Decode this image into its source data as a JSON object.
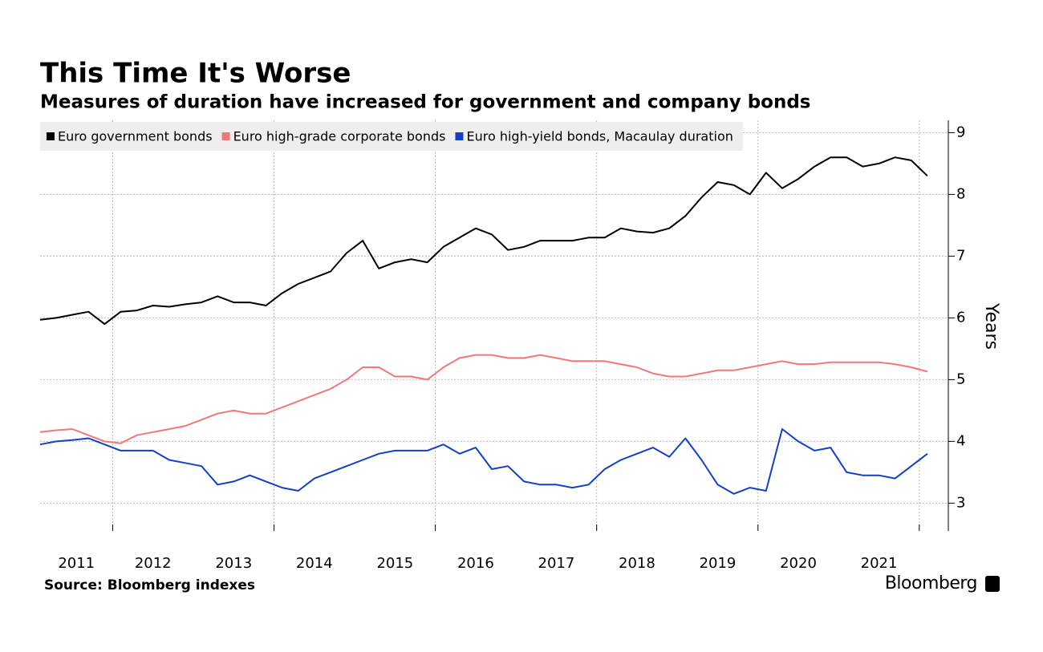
{
  "chart_data": {
    "type": "line",
    "title": "This Time It's Worse",
    "subtitle": "Measures of duration have increased for government and company bonds",
    "y_label": "Years",
    "source": "Source: Bloomberg indexes",
    "brand": "Bloomberg",
    "legend": "top-left",
    "grid": true,
    "xlim": [
      2011.1,
      2022.36
    ],
    "xticks": [
      {
        "value": 2011.55,
        "label": "2011"
      },
      {
        "value": 2012.5,
        "label": "2012"
      },
      {
        "value": 2013.5,
        "label": "2013"
      },
      {
        "value": 2014.5,
        "label": "2014"
      },
      {
        "value": 2015.5,
        "label": "2015"
      },
      {
        "value": 2016.5,
        "label": "2016"
      },
      {
        "value": 2017.5,
        "label": "2017"
      },
      {
        "value": 2018.5,
        "label": "2018"
      },
      {
        "value": 2019.5,
        "label": "2019"
      },
      {
        "value": 2020.5,
        "label": "2020"
      },
      {
        "value": 2021.5,
        "label": "2021"
      }
    ],
    "xgrid": [
      2012,
      2014,
      2016,
      2018,
      2020,
      2022
    ],
    "ylim": [
      2.55,
      9.2
    ],
    "yticks": [
      3,
      4,
      5,
      6,
      7,
      8,
      9
    ],
    "x": [
      2011.1,
      2011.3,
      2011.5,
      2011.7,
      2011.9,
      2012.1,
      2012.3,
      2012.5,
      2012.7,
      2012.9,
      2013.1,
      2013.3,
      2013.5,
      2013.7,
      2013.9,
      2014.1,
      2014.3,
      2014.5,
      2014.7,
      2014.9,
      2015.1,
      2015.3,
      2015.5,
      2015.7,
      2015.9,
      2016.1,
      2016.3,
      2016.5,
      2016.7,
      2016.9,
      2017.1,
      2017.3,
      2017.5,
      2017.7,
      2017.9,
      2018.1,
      2018.3,
      2018.5,
      2018.7,
      2018.9,
      2019.1,
      2019.3,
      2019.5,
      2019.7,
      2019.9,
      2020.1,
      2020.3,
      2020.5,
      2020.7,
      2020.9,
      2021.1,
      2021.3,
      2021.5,
      2021.7,
      2021.9,
      2022.1
    ],
    "series": [
      {
        "name": "Euro government bonds",
        "color": "#000000",
        "values": [
          5.97,
          6.0,
          6.05,
          6.1,
          5.9,
          6.1,
          6.12,
          6.2,
          6.18,
          6.22,
          6.25,
          6.35,
          6.25,
          6.25,
          6.2,
          6.4,
          6.55,
          6.65,
          6.75,
          7.05,
          7.25,
          6.8,
          6.9,
          6.95,
          6.9,
          7.15,
          7.3,
          7.45,
          7.35,
          7.1,
          7.15,
          7.25,
          7.25,
          7.25,
          7.3,
          7.3,
          7.45,
          7.4,
          7.38,
          7.45,
          7.65,
          7.95,
          8.2,
          8.15,
          8.0,
          8.35,
          8.1,
          8.25,
          8.45,
          8.6,
          8.6,
          8.45,
          8.5,
          8.6,
          8.55,
          8.3
        ]
      },
      {
        "name": "Euro high-grade corporate bonds",
        "color": "#f07878",
        "values": [
          4.15,
          4.18,
          4.2,
          4.1,
          4.0,
          3.97,
          4.1,
          4.15,
          4.2,
          4.25,
          4.35,
          4.45,
          4.5,
          4.45,
          4.45,
          4.55,
          4.65,
          4.75,
          4.85,
          5.0,
          5.2,
          5.2,
          5.05,
          5.05,
          5.0,
          5.2,
          5.35,
          5.4,
          5.4,
          5.35,
          5.35,
          5.4,
          5.35,
          5.3,
          5.3,
          5.3,
          5.25,
          5.2,
          5.1,
          5.05,
          5.05,
          5.1,
          5.15,
          5.15,
          5.2,
          5.25,
          5.3,
          5.25,
          5.25,
          5.28,
          5.28,
          5.28,
          5.28,
          5.25,
          5.2,
          5.13
        ]
      },
      {
        "name": "Euro high-yield bonds, Macaulay duration",
        "color": "#1240c8",
        "values": [
          3.95,
          4.0,
          4.02,
          4.05,
          3.95,
          3.85,
          3.85,
          3.85,
          3.7,
          3.65,
          3.6,
          3.3,
          3.35,
          3.45,
          3.35,
          3.25,
          3.2,
          3.4,
          3.5,
          3.6,
          3.7,
          3.8,
          3.85,
          3.85,
          3.85,
          3.95,
          3.8,
          3.9,
          3.55,
          3.6,
          3.35,
          3.3,
          3.3,
          3.25,
          3.3,
          3.55,
          3.7,
          3.8,
          3.9,
          3.75,
          4.05,
          3.7,
          3.3,
          3.15,
          3.25,
          3.2,
          4.2,
          4.0,
          3.85,
          3.9,
          3.5,
          3.45,
          3.45,
          3.4,
          3.6,
          3.8
        ]
      }
    ]
  }
}
